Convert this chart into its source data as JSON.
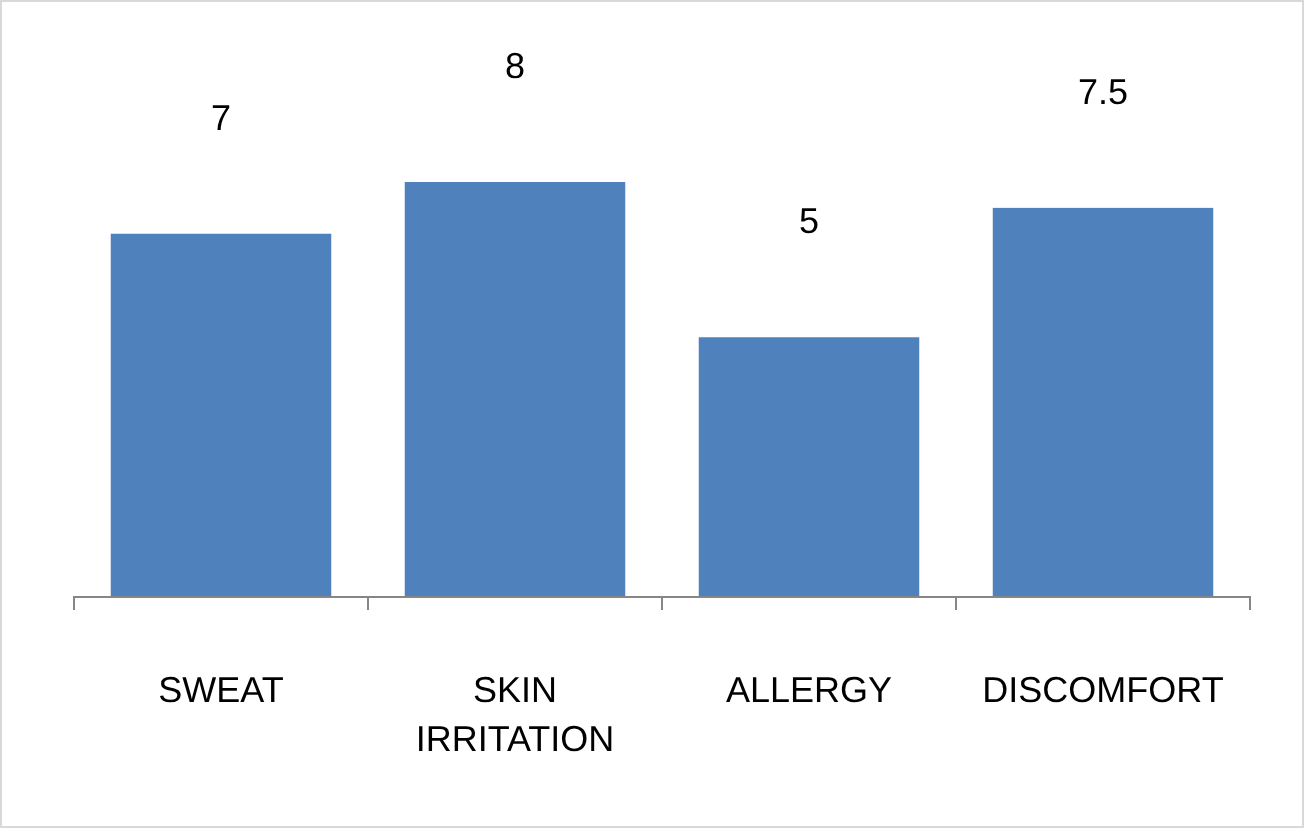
{
  "chart_data": {
    "type": "bar",
    "categories": [
      "SWEAT",
      "SKIN IRRITATION",
      "ALLERGY",
      "DISCOMFORT"
    ],
    "values": [
      7,
      8,
      5,
      7.5
    ],
    "color": "#4f81bd",
    "data_labels": true
  }
}
